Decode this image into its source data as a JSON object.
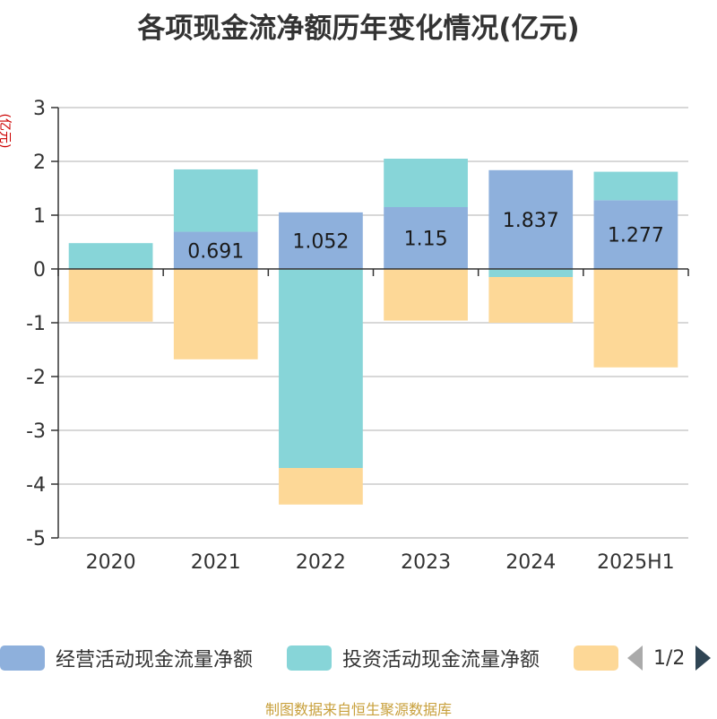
{
  "title": "各项现金流净额历年变化情况(亿元)",
  "source_text": "制图数据来自恒生聚源数据库",
  "legend_pager": {
    "text": "1/2"
  },
  "chart_data": {
    "type": "bar",
    "stacked": true,
    "ylabel": "(亿元)",
    "ylim": [
      -5,
      3
    ],
    "yticks": [
      3,
      2,
      1,
      0,
      -1,
      -2,
      -3,
      -4,
      -5
    ],
    "categories": [
      "2020",
      "2021",
      "2022",
      "2023",
      "2024",
      "2025H1"
    ],
    "series": [
      {
        "name": "经营活动现金流量净额",
        "color": "#8eb0dc",
        "values": [
          -0.01,
          0.691,
          1.052,
          1.15,
          1.837,
          1.277
        ],
        "labels": [
          "",
          "0.691",
          "1.052",
          "1.15",
          "1.837",
          "1.277"
        ]
      },
      {
        "name": "投资活动现金流量净额",
        "color": "#87d5d8",
        "values": [
          0.48,
          1.16,
          -3.7,
          0.9,
          -0.15,
          0.53
        ]
      },
      {
        "name": "",
        "color": "#fdd897",
        "values": [
          -0.97,
          -1.68,
          -0.68,
          -0.96,
          -0.85,
          -1.83
        ]
      }
    ],
    "grid": true,
    "legend_position": "bottom"
  }
}
